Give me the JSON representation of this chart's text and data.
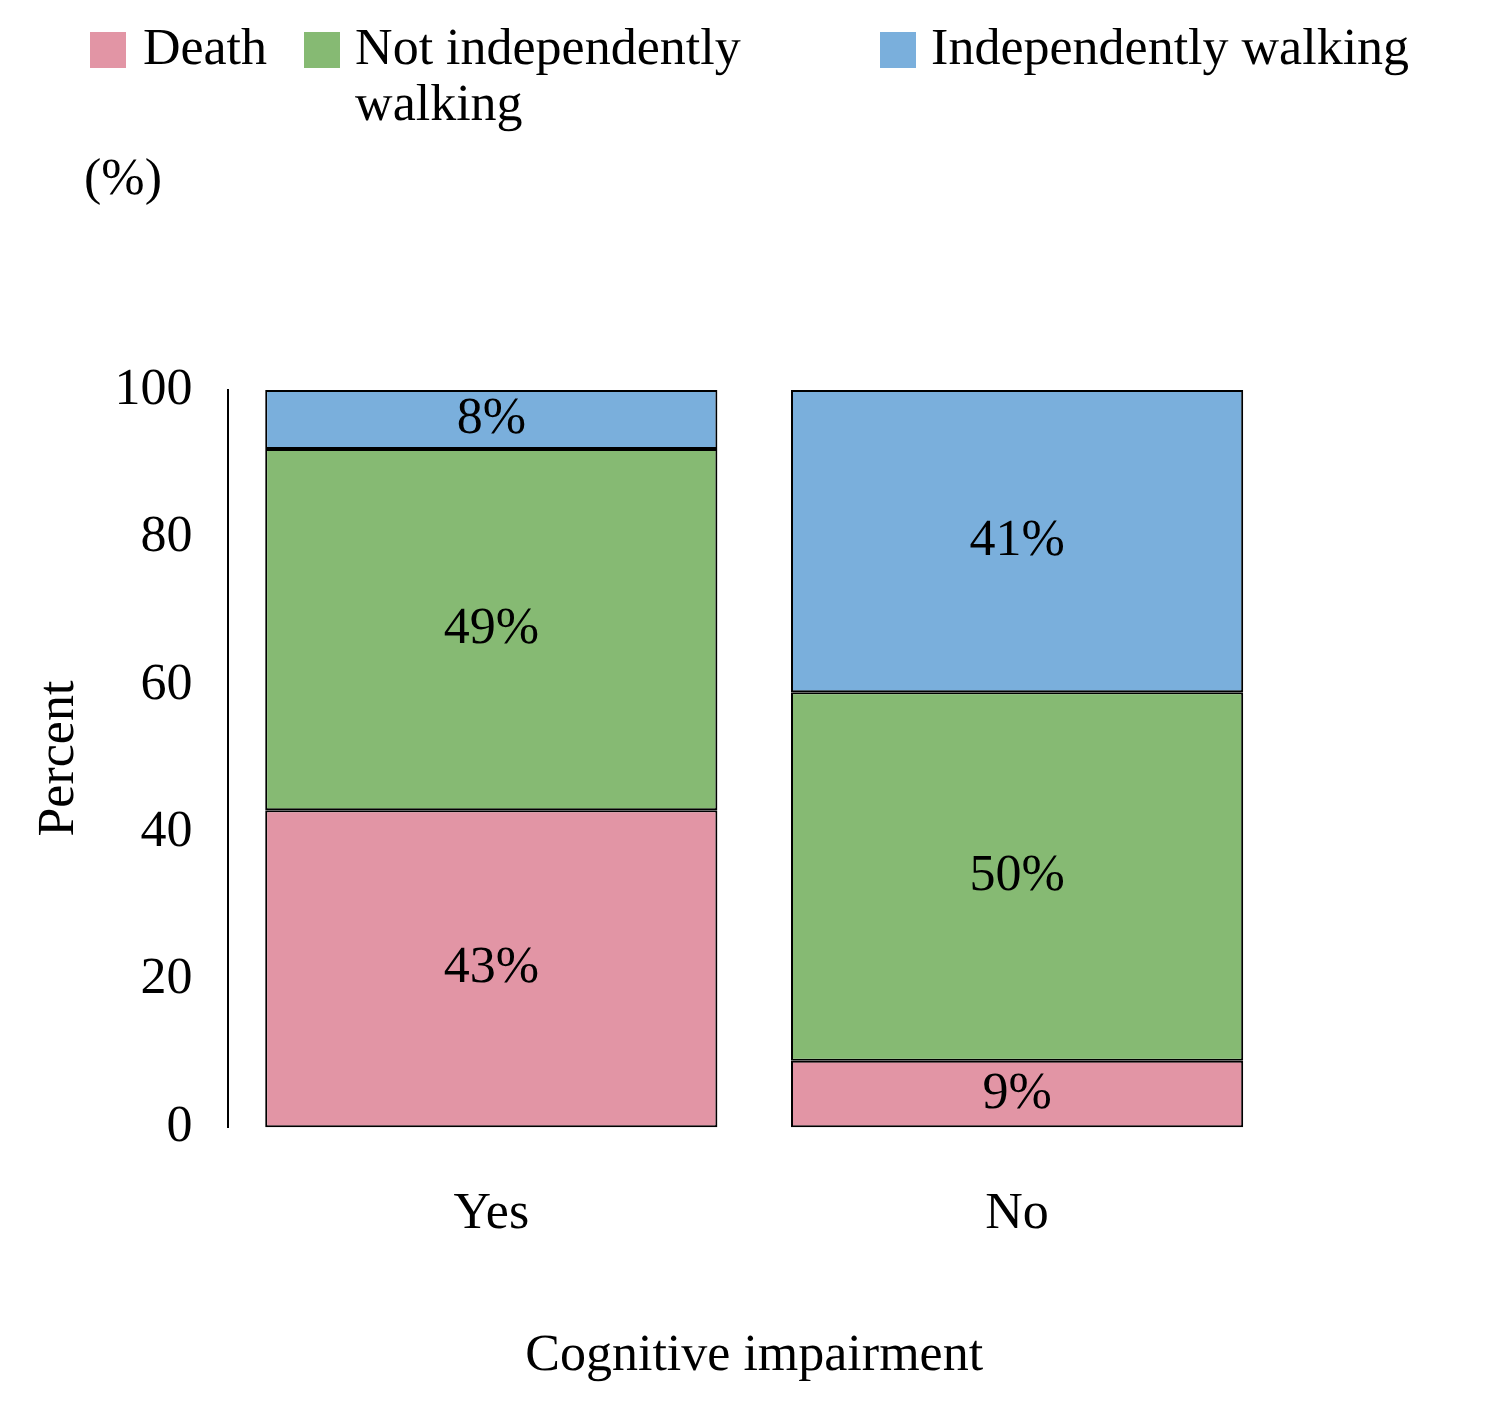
{
  "chart_data": {
    "type": "bar",
    "stacked": true,
    "categories": [
      "Yes",
      "No"
    ],
    "xlabel": "Cognitive impairment",
    "ylabel": "Percent",
    "annotations": [
      "(%)"
    ],
    "ylim": [
      0,
      100
    ],
    "yticks": [
      0,
      20,
      40,
      60,
      80,
      100
    ],
    "grid": false,
    "legend": "top",
    "series": [
      {
        "name": "Death",
        "color": "#e295a5",
        "values": [
          43,
          9
        ],
        "value_labels": [
          "43%",
          "9%"
        ]
      },
      {
        "name": "Not independently walking",
        "color": "#86ba73",
        "values": [
          49,
          50
        ],
        "value_labels": [
          "49%",
          "50%"
        ]
      },
      {
        "name": "Independently walking",
        "color": "#7aafdc",
        "values": [
          8,
          41
        ],
        "value_labels": [
          "8%",
          "41%"
        ]
      }
    ]
  }
}
